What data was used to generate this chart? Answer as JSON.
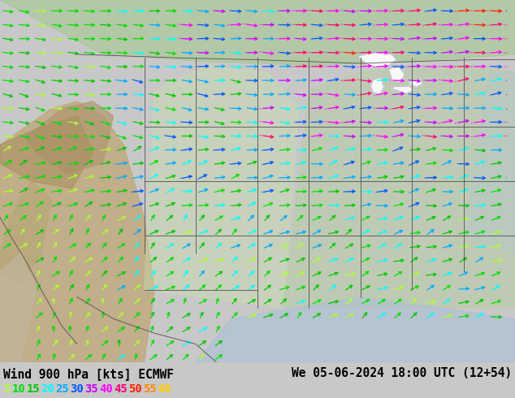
{
  "title_left": "Wind 900 hPa [kts] ECMWF",
  "title_right": "We 05-06-2024 18:00 UTC (12+54)",
  "legend_values": [
    "5",
    "10",
    "15",
    "20",
    "25",
    "30",
    "35",
    "40",
    "45",
    "50",
    "55",
    "60"
  ],
  "legend_colors": [
    "#adff2f",
    "#00e000",
    "#00c800",
    "#00ffff",
    "#00aaff",
    "#0055ff",
    "#cc00ff",
    "#ff00ff",
    "#ff0077",
    "#ff2200",
    "#ff8800",
    "#ffcc00"
  ],
  "bg_color": "#c8c8c8",
  "fig_width": 6.34,
  "fig_height": 4.9,
  "dpi": 100,
  "title_fontsize": 10.5,
  "legend_fontsize": 10
}
